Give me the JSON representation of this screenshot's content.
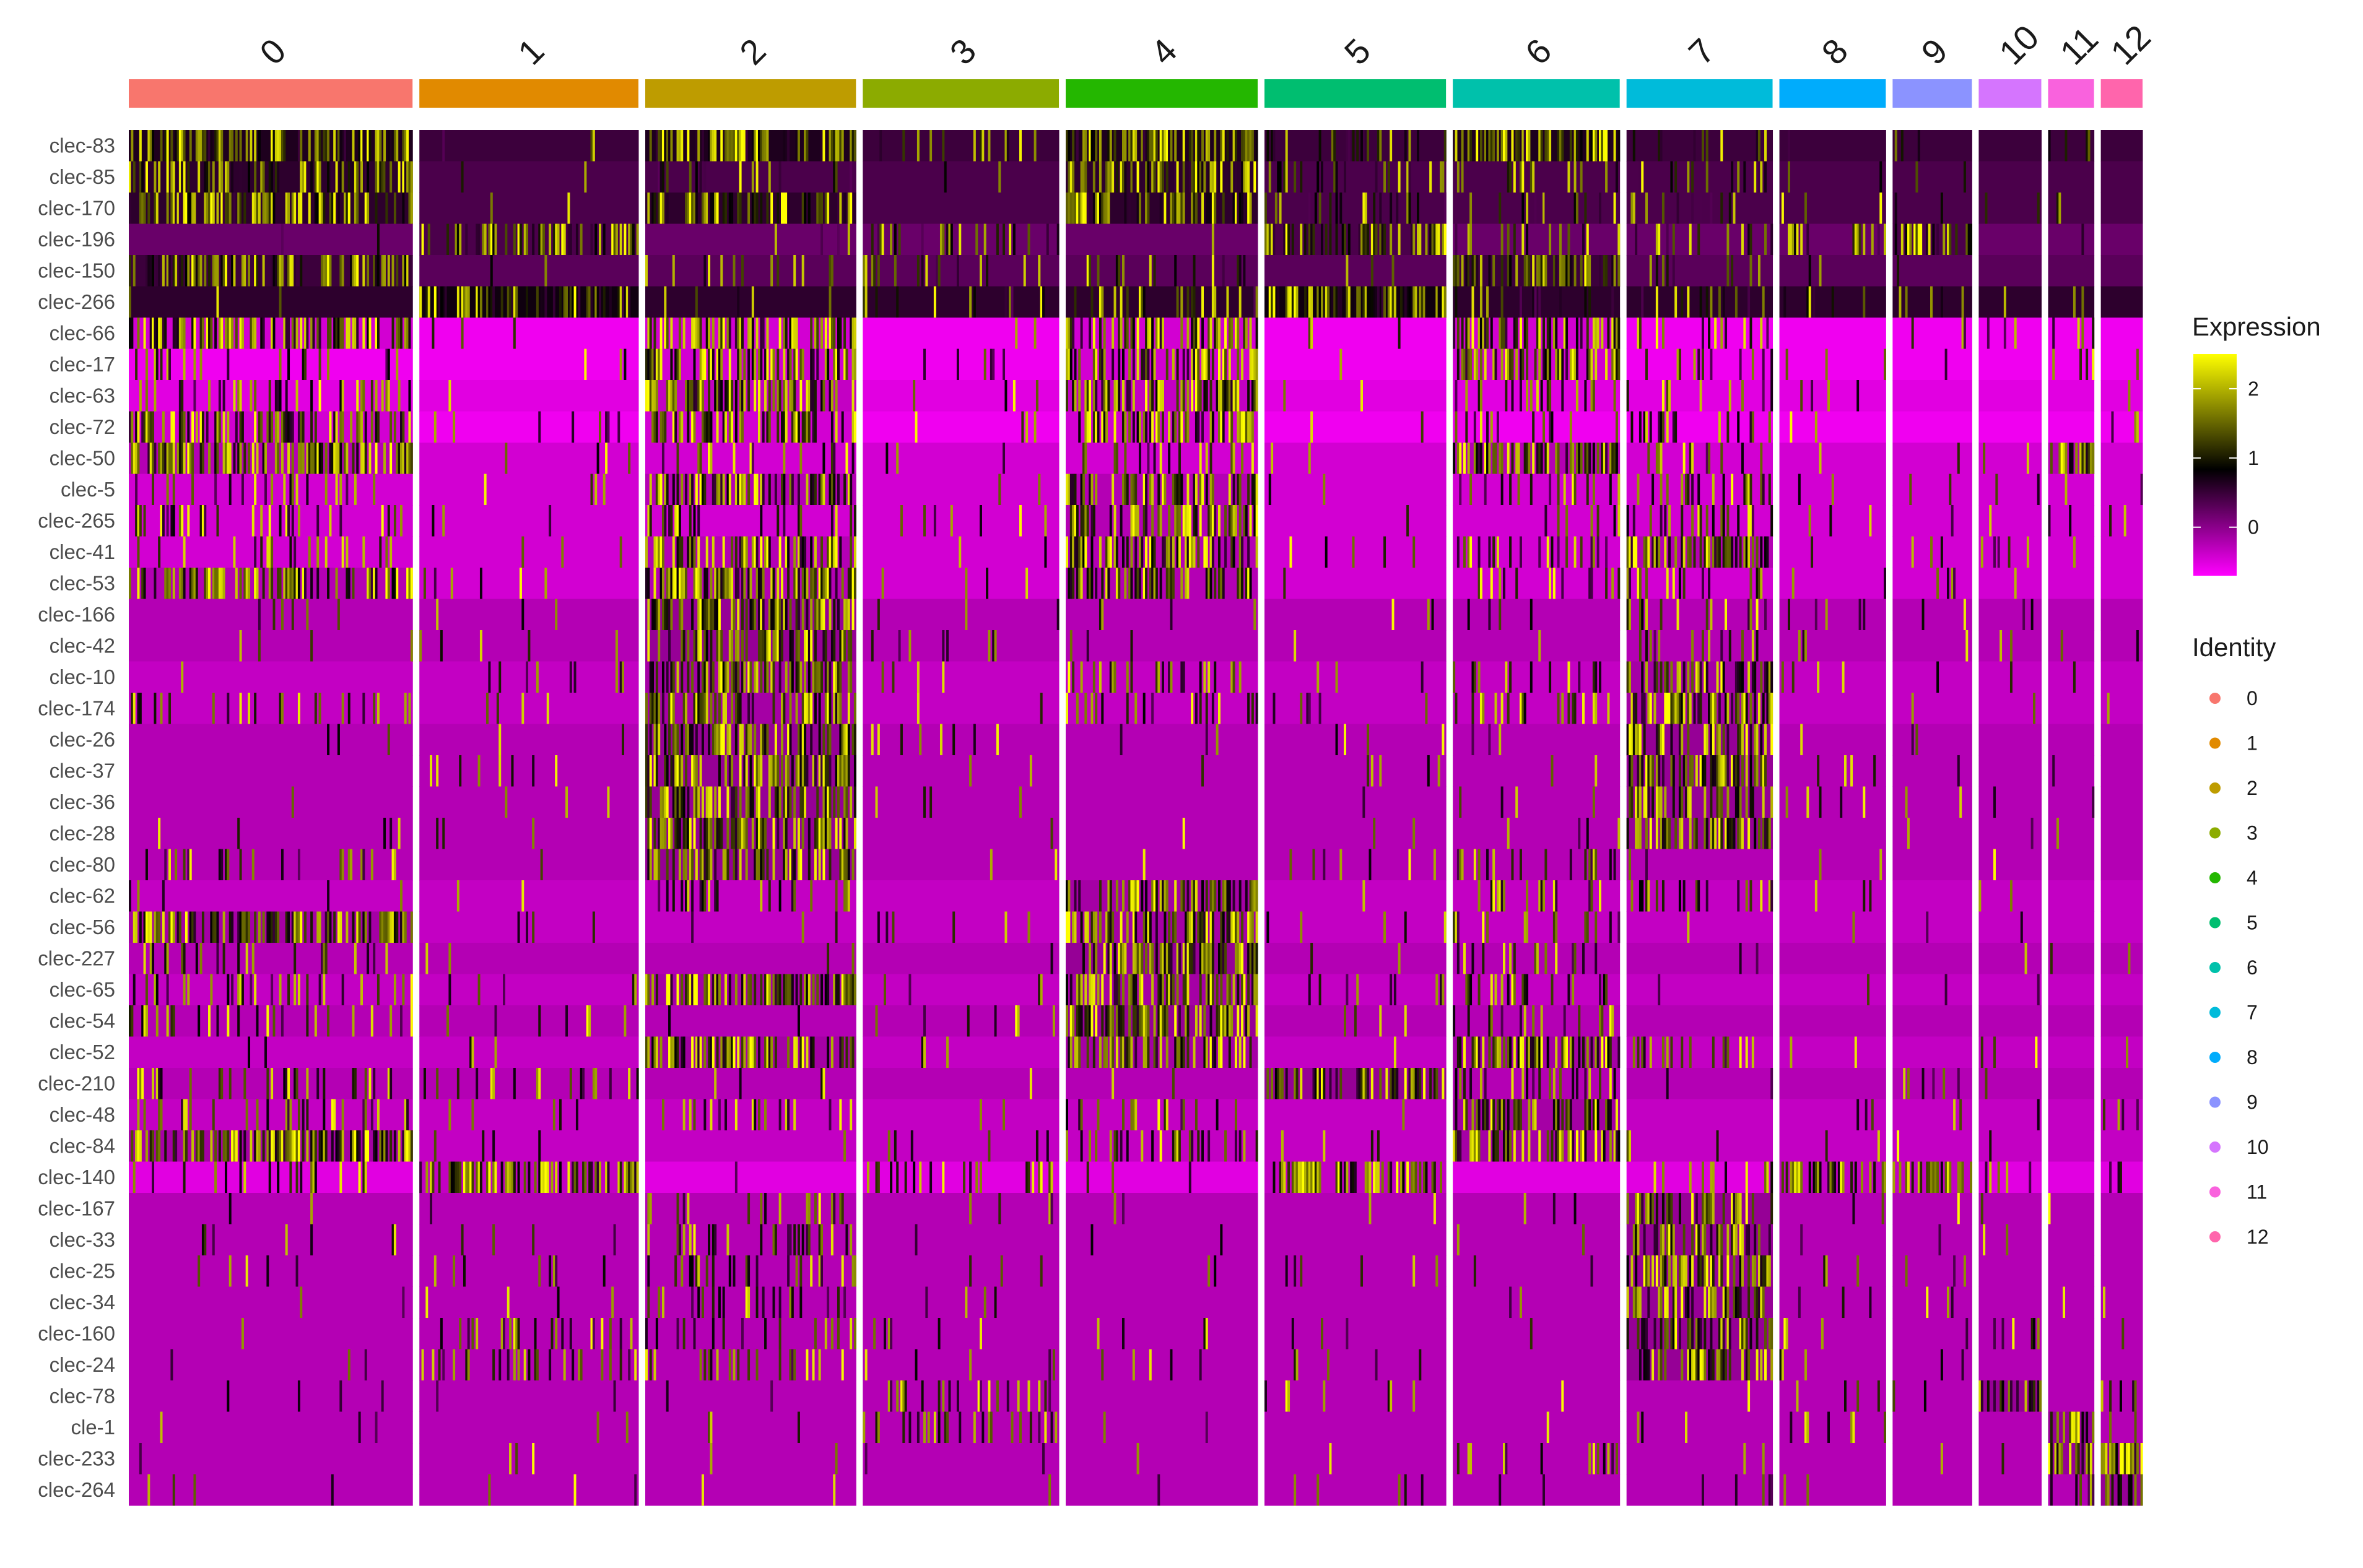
{
  "chart_data": {
    "type": "heatmap",
    "title": "",
    "xlabel": "",
    "ylabel": "",
    "clusters": [
      {
        "label": "0",
        "color": "#F8766D",
        "cells": 136
      },
      {
        "label": "1",
        "color": "#E18A00",
        "cells": 105
      },
      {
        "label": "2",
        "color": "#BE9C00",
        "cells": 101
      },
      {
        "label": "3",
        "color": "#8CAB00",
        "cells": 94
      },
      {
        "label": "4",
        "color": "#24B700",
        "cells": 92
      },
      {
        "label": "5",
        "color": "#00BE70",
        "cells": 87
      },
      {
        "label": "6",
        "color": "#00C1AB",
        "cells": 80
      },
      {
        "label": "7",
        "color": "#00BBDA",
        "cells": 70
      },
      {
        "label": "8",
        "color": "#00ACFC",
        "cells": 51
      },
      {
        "label": "9",
        "color": "#8B93FF",
        "cells": 38
      },
      {
        "label": "10",
        "color": "#D575FE",
        "cells": 30
      },
      {
        "label": "11",
        "color": "#F962DD",
        "cells": 22
      },
      {
        "label": "12",
        "color": "#FF65AC",
        "cells": 20
      }
    ],
    "genes": [
      {
        "name": "clec-83",
        "base": 0.6,
        "hi": [
          0,
          2,
          4,
          6
        ],
        "mid": [
          3,
          5,
          7,
          11
        ]
      },
      {
        "name": "clec-85",
        "base": 0.5,
        "hi": [
          0,
          4
        ],
        "mid": [
          2,
          5,
          6,
          7
        ]
      },
      {
        "name": "clec-170",
        "base": 0.5,
        "hi": [
          0,
          2,
          4
        ],
        "mid": [
          5,
          6,
          7
        ]
      },
      {
        "name": "clec-196",
        "base": 0.3,
        "hi": [
          1,
          5,
          9
        ],
        "mid": [
          3,
          6,
          7,
          8
        ]
      },
      {
        "name": "clec-150",
        "base": 0.4,
        "hi": [
          0,
          6
        ],
        "mid": [
          2,
          3,
          4,
          7
        ]
      },
      {
        "name": "clec-266",
        "base": 0.7,
        "hi": [
          1,
          5
        ],
        "mid": [
          3,
          4,
          6,
          7,
          8,
          9
        ]
      },
      {
        "name": "clec-66",
        "base": -0.6,
        "hi": [
          0,
          2,
          4,
          6
        ],
        "mid": [
          7,
          11
        ]
      },
      {
        "name": "clec-17",
        "base": -0.6,
        "hi": [
          2,
          4,
          6
        ],
        "mid": [
          0,
          7,
          11
        ]
      },
      {
        "name": "clec-63",
        "base": -0.5,
        "hi": [
          2,
          4
        ],
        "mid": [
          0,
          6,
          7
        ]
      },
      {
        "name": "clec-72",
        "base": -0.6,
        "hi": [
          0,
          2,
          4
        ],
        "mid": [
          6,
          7
        ]
      },
      {
        "name": "clec-50",
        "base": -0.4,
        "hi": [
          0,
          6,
          11
        ],
        "mid": [
          2,
          4,
          7
        ]
      },
      {
        "name": "clec-5",
        "base": -0.4,
        "hi": [
          2,
          4
        ],
        "mid": [
          0,
          6,
          7
        ]
      },
      {
        "name": "clec-265",
        "base": -0.4,
        "hi": [
          4
        ],
        "mid": [
          0,
          2,
          6,
          7
        ]
      },
      {
        "name": "clec-41",
        "base": -0.4,
        "hi": [
          2,
          4,
          7
        ],
        "mid": [
          0,
          6,
          10
        ]
      },
      {
        "name": "clec-53",
        "base": -0.4,
        "hi": [
          0,
          2,
          4
        ],
        "mid": [
          6,
          7
        ]
      },
      {
        "name": "clec-166",
        "base": -0.2,
        "hi": [
          2
        ],
        "mid": [
          7
        ]
      },
      {
        "name": "clec-42",
        "base": -0.2,
        "hi": [
          2
        ],
        "mid": [
          7
        ]
      },
      {
        "name": "clec-10",
        "base": -0.3,
        "hi": [
          2,
          7
        ],
        "mid": [
          4,
          6
        ]
      },
      {
        "name": "clec-174",
        "base": -0.3,
        "hi": [
          2,
          7
        ],
        "mid": [
          0,
          4,
          6
        ]
      },
      {
        "name": "clec-26",
        "base": -0.2,
        "hi": [
          2,
          7
        ],
        "mid": []
      },
      {
        "name": "clec-37",
        "base": -0.2,
        "hi": [
          2,
          7
        ],
        "mid": []
      },
      {
        "name": "clec-36",
        "base": -0.2,
        "hi": [
          2,
          7
        ],
        "mid": []
      },
      {
        "name": "clec-28",
        "base": -0.2,
        "hi": [
          2,
          7
        ],
        "mid": []
      },
      {
        "name": "clec-80",
        "base": -0.2,
        "hi": [
          2
        ],
        "mid": [
          0,
          6
        ]
      },
      {
        "name": "clec-62",
        "base": -0.3,
        "hi": [
          4
        ],
        "mid": [
          2,
          6,
          7
        ]
      },
      {
        "name": "clec-56",
        "base": -0.3,
        "hi": [
          0,
          4
        ],
        "mid": [
          6
        ]
      },
      {
        "name": "clec-227",
        "base": -0.2,
        "hi": [
          4
        ],
        "mid": [
          0,
          6
        ]
      },
      {
        "name": "clec-65",
        "base": -0.3,
        "hi": [
          2,
          4
        ],
        "mid": [
          0,
          6
        ]
      },
      {
        "name": "clec-54",
        "base": -0.2,
        "hi": [
          4
        ],
        "mid": [
          0,
          6
        ]
      },
      {
        "name": "clec-52",
        "base": -0.3,
        "hi": [
          2,
          4,
          6
        ],
        "mid": [
          7
        ]
      },
      {
        "name": "clec-210",
        "base": -0.2,
        "hi": [
          5
        ],
        "mid": [
          0,
          1,
          6,
          9
        ]
      },
      {
        "name": "clec-48",
        "base": -0.3,
        "hi": [
          6
        ],
        "mid": [
          0,
          2,
          4
        ]
      },
      {
        "name": "clec-84",
        "base": -0.3,
        "hi": [
          0,
          6
        ],
        "mid": [
          4
        ]
      },
      {
        "name": "clec-140",
        "base": -0.5,
        "hi": [
          1,
          5,
          8,
          9
        ],
        "mid": [
          0,
          3,
          7,
          10,
          12
        ]
      },
      {
        "name": "clec-167",
        "base": -0.2,
        "hi": [
          7
        ],
        "mid": [
          2
        ]
      },
      {
        "name": "clec-33",
        "base": -0.2,
        "hi": [
          7
        ],
        "mid": [
          2
        ]
      },
      {
        "name": "clec-25",
        "base": -0.2,
        "hi": [
          7
        ],
        "mid": [
          2
        ]
      },
      {
        "name": "clec-34",
        "base": -0.2,
        "hi": [
          7
        ],
        "mid": [
          2
        ]
      },
      {
        "name": "clec-160",
        "base": -0.2,
        "hi": [
          7
        ],
        "mid": [
          1,
          2,
          10
        ]
      },
      {
        "name": "clec-24",
        "base": -0.2,
        "hi": [
          7
        ],
        "mid": [
          1,
          2
        ]
      },
      {
        "name": "clec-78",
        "base": -0.2,
        "hi": [
          10
        ],
        "mid": [
          3,
          8,
          12
        ]
      },
      {
        "name": "cle-1",
        "base": -0.2,
        "hi": [
          11
        ],
        "mid": [
          3,
          8,
          12
        ]
      },
      {
        "name": "clec-233",
        "base": -0.2,
        "hi": [
          11,
          12
        ],
        "mid": [
          6
        ]
      },
      {
        "name": "clec-264",
        "base": -0.2,
        "hi": [
          12
        ],
        "mid": [
          11
        ]
      }
    ],
    "color_scale": {
      "title": "Expression",
      "low": "#FF00FF",
      "mid": "#000000",
      "high": "#FFFF00",
      "domain": [
        -0.7,
        2.5
      ],
      "ticks": [
        "0",
        "1",
        "2"
      ],
      "tick_values": [
        0,
        1,
        2
      ]
    },
    "identity_legend": {
      "title": "Identity",
      "items": [
        "0",
        "1",
        "2",
        "3",
        "4",
        "5",
        "6",
        "7",
        "8",
        "9",
        "10",
        "11",
        "12"
      ]
    }
  }
}
